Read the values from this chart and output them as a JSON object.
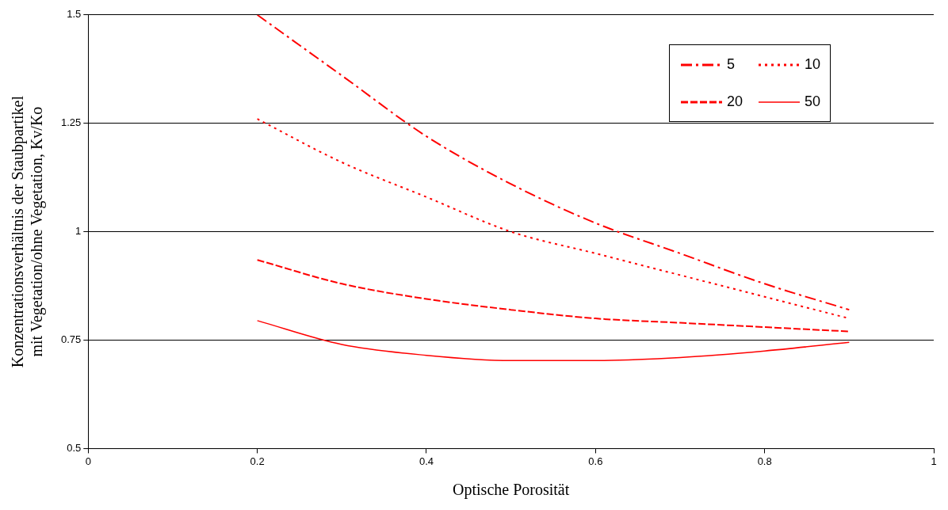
{
  "chart_data": {
    "type": "line",
    "xlabel": "Optische Porosität",
    "ylabel": "Konzentrationsverhältnis der Staubpartikel\nmit Vegetation/ohne Vegetation, Kv/Ko",
    "xlim": [
      0,
      1
    ],
    "xticks": [
      0,
      0.2,
      0.4,
      0.6,
      0.8,
      1
    ],
    "ylim": [
      0.5,
      1.5
    ],
    "yticks": [
      0.5,
      0.75,
      1,
      1.25,
      1.5
    ],
    "grid": "y",
    "legend": "top right",
    "marker": "none",
    "x": [
      0.2,
      0.3,
      0.4,
      0.5,
      0.6,
      0.7,
      0.8,
      0.9
    ],
    "series": [
      {
        "name": "5",
        "color": "#ff0000",
        "line_style": "dashdot",
        "values": [
          1.5,
          1.36,
          1.22,
          1.11,
          1.02,
          0.95,
          0.88,
          0.82
        ]
      },
      {
        "name": "10",
        "color": "#ff0000",
        "line_style": "dotted",
        "values": [
          1.26,
          1.16,
          1.08,
          1.0,
          0.95,
          0.9,
          0.85,
          0.8
        ]
      },
      {
        "name": "20",
        "color": "#ff0000",
        "line_style": "dashed",
        "values": [
          0.935,
          0.88,
          0.845,
          0.82,
          0.8,
          0.79,
          0.78,
          0.77
        ]
      },
      {
        "name": "50",
        "color": "#ff0000",
        "line_style": "solid",
        "values": [
          0.795,
          0.74,
          0.715,
          0.703,
          0.703,
          0.71,
          0.725,
          0.745
        ]
      }
    ]
  }
}
